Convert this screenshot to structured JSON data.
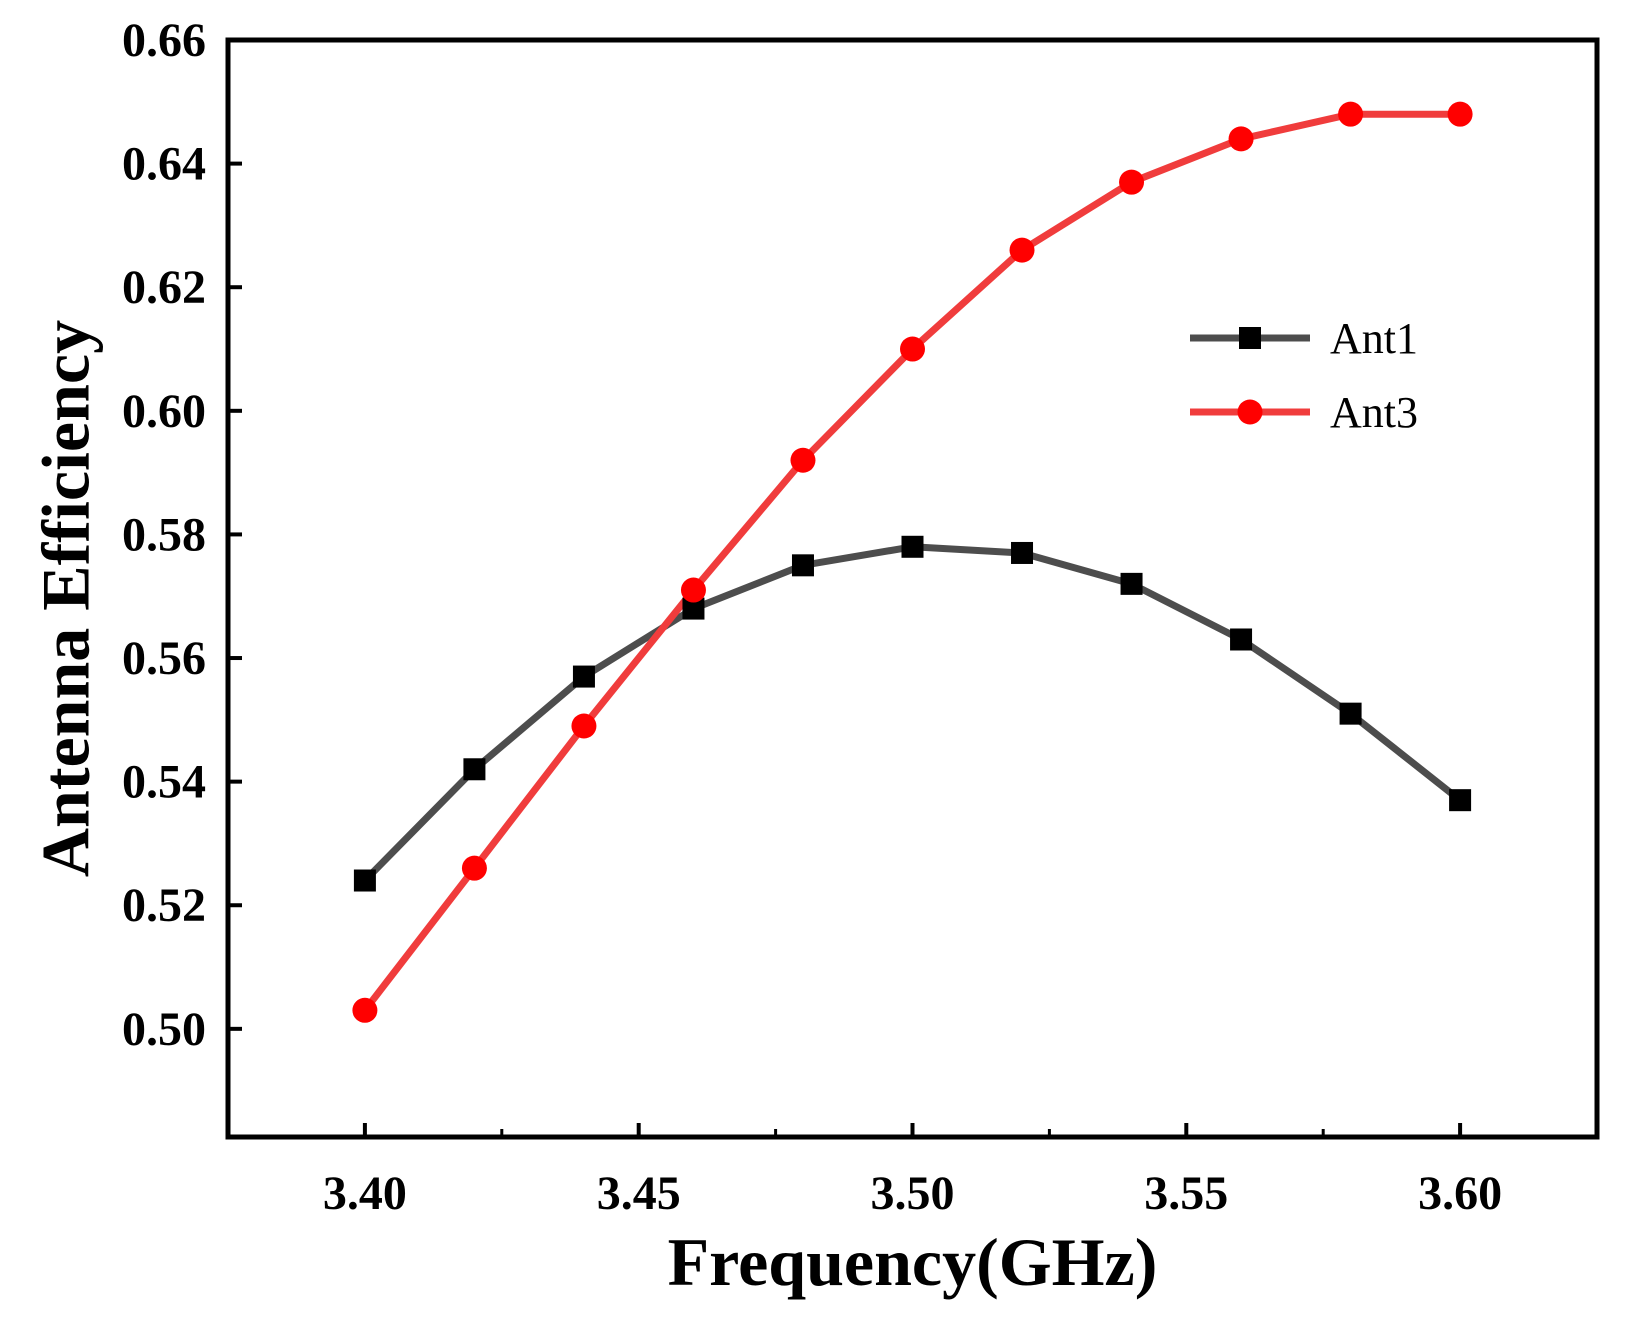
{
  "chart_data": {
    "type": "line",
    "title": "",
    "xlabel": "Frequency(GHz)",
    "ylabel": "Antenna Efficiency",
    "xlim": [
      3.375,
      3.625
    ],
    "ylim": [
      0.4825,
      0.66
    ],
    "x": [
      3.4,
      3.42,
      3.44,
      3.46,
      3.48,
      3.5,
      3.52,
      3.54,
      3.56,
      3.58,
      3.6
    ],
    "x_ticks": [
      3.4,
      3.45,
      3.5,
      3.55,
      3.6
    ],
    "x_tick_labels": [
      "3.40",
      "3.45",
      "3.50",
      "3.55",
      "3.60"
    ],
    "x_minor_ticks": [
      3.425,
      3.475,
      3.525,
      3.575
    ],
    "y_ticks": [
      0.5,
      0.52,
      0.54,
      0.56,
      0.58,
      0.6,
      0.62,
      0.64,
      0.66
    ],
    "y_tick_labels": [
      "0.50",
      "0.52",
      "0.54",
      "0.56",
      "0.58",
      "0.60",
      "0.62",
      "0.64",
      "0.66"
    ],
    "grid": false,
    "legend_position": "upper-right",
    "series": [
      {
        "name": "Ant1",
        "marker": "square",
        "color": "#4d4d4d",
        "marker_color": "#000000",
        "values": [
          0.524,
          0.542,
          0.557,
          0.568,
          0.575,
          0.578,
          0.577,
          0.572,
          0.563,
          0.551,
          0.537
        ]
      },
      {
        "name": "Ant3",
        "marker": "circle",
        "color": "#f03c3c",
        "marker_color": "#ff0000",
        "values": [
          0.503,
          0.526,
          0.549,
          0.571,
          0.592,
          0.61,
          0.626,
          0.637,
          0.644,
          0.648,
          0.648
        ]
      }
    ]
  }
}
